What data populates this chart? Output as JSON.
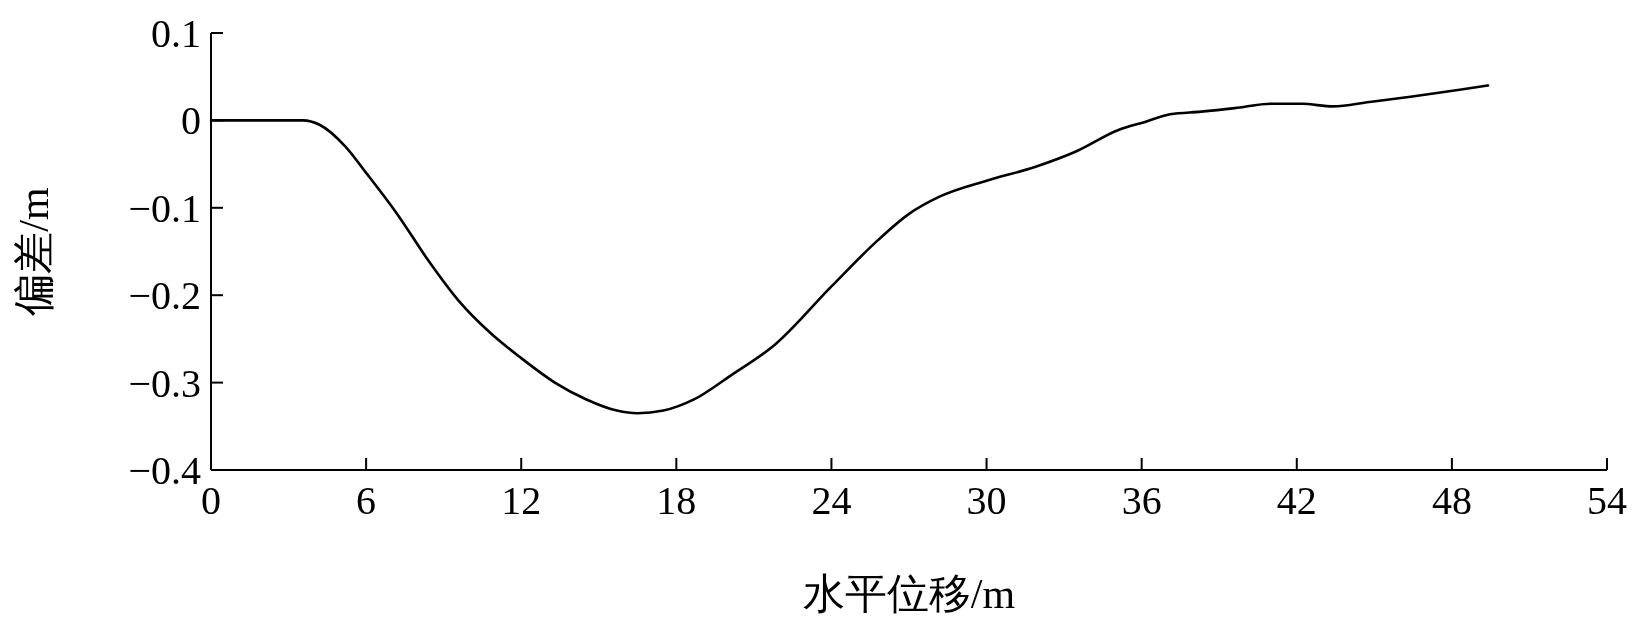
{
  "chart_data": {
    "type": "line",
    "xlabel": "水平位移/m",
    "ylabel": "偏差/m",
    "xlim": [
      0,
      54
    ],
    "xticks": [
      0,
      6,
      12,
      18,
      24,
      30,
      36,
      42,
      48,
      54
    ],
    "ylim": [
      -0.4,
      0.1
    ],
    "yticks": [
      0.1,
      0,
      {
        "value": -0.1,
        "label": "−0.1"
      },
      {
        "value": -0.2,
        "label": "−0.2"
      },
      {
        "value": -0.3,
        "label": "−0.3"
      },
      {
        "value": -0.4,
        "label": "−0.4"
      }
    ],
    "marker": "none",
    "line_style": "solid",
    "series": [
      {
        "color": "#000000",
        "x": [
          0,
          3.56,
          4.2,
          5.2,
          6,
          7.2,
          8.4,
          9.6,
          10.8,
          12,
          13.3,
          14.5,
          15.7,
          16.5,
          17.5,
          18.7,
          20.1,
          21.8,
          24,
          25.8,
          27,
          28.2,
          30,
          31.9,
          33.5,
          35.1,
          36.1,
          37.1,
          38.3,
          39.6,
          41,
          42.2,
          43.4,
          44.8,
          46.4,
          48.3,
          49.4
        ],
        "values": [
          0,
          0,
          -0.005,
          -0.03,
          -0.06,
          -0.107,
          -0.16,
          -0.207,
          -0.243,
          -0.272,
          -0.3,
          -0.319,
          -0.332,
          -0.335,
          -0.332,
          -0.319,
          -0.292,
          -0.257,
          -0.19,
          -0.137,
          -0.107,
          -0.087,
          -0.069,
          -0.053,
          -0.035,
          -0.011,
          -0.002,
          0.007,
          0.01,
          0.014,
          0.019,
          0.019,
          0.016,
          0.021,
          0.027,
          0.035,
          0.04
        ]
      }
    ]
  }
}
